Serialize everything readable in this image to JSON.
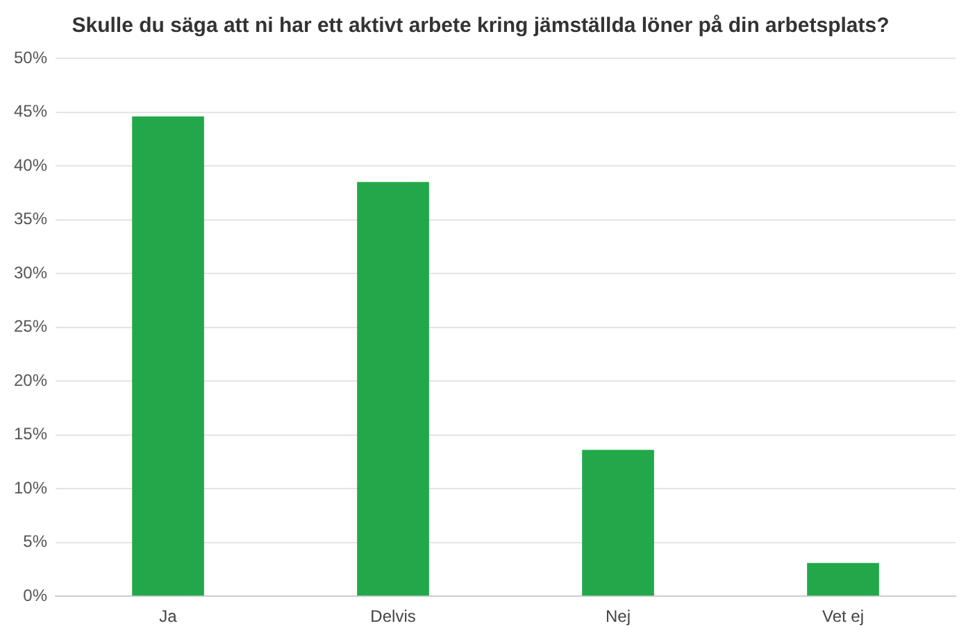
{
  "chart_data": {
    "type": "bar",
    "title": "Skulle du säga att ni har ett aktivt arbete kring jämställda löner på din arbetsplats?",
    "categories": [
      "Ja",
      "Delvis",
      "Nej",
      "Vet ej"
    ],
    "values": [
      44.6,
      38.5,
      13.6,
      3.1
    ],
    "color": "#22a84a",
    "ylim": [
      0,
      50
    ],
    "yticks": [
      {
        "value": 0,
        "label": "0%"
      },
      {
        "value": 5,
        "label": "5%"
      },
      {
        "value": 10,
        "label": "10%"
      },
      {
        "value": 15,
        "label": "15%"
      },
      {
        "value": 20,
        "label": "20%"
      },
      {
        "value": 25,
        "label": "25%"
      },
      {
        "value": 30,
        "label": "30%"
      },
      {
        "value": 35,
        "label": "35%"
      },
      {
        "value": 40,
        "label": "40%"
      },
      {
        "value": 45,
        "label": "45%"
      },
      {
        "value": 50,
        "label": "50%"
      }
    ],
    "grid": "y",
    "legend": false
  }
}
